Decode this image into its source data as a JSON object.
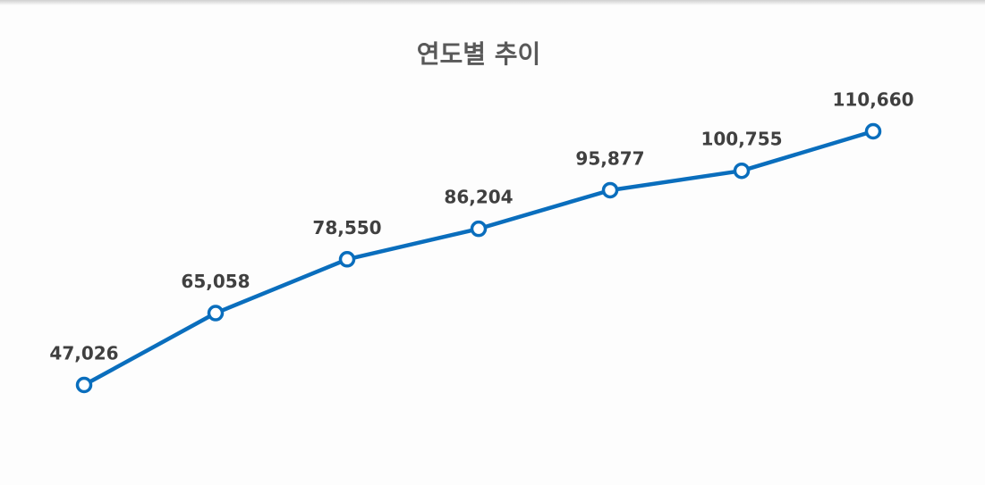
{
  "chart_data": {
    "type": "line",
    "title": "연도별 추이",
    "categories": [
      null,
      null,
      null,
      null,
      null,
      null,
      null
    ],
    "values": [
      47026,
      65058,
      78550,
      86204,
      95877,
      100755,
      110660
    ],
    "value_labels": [
      "47,026",
      "65,058",
      "78,550",
      "86,204",
      "95,877",
      "100,755",
      "110,660"
    ],
    "color": "#0a6ebd"
  }
}
